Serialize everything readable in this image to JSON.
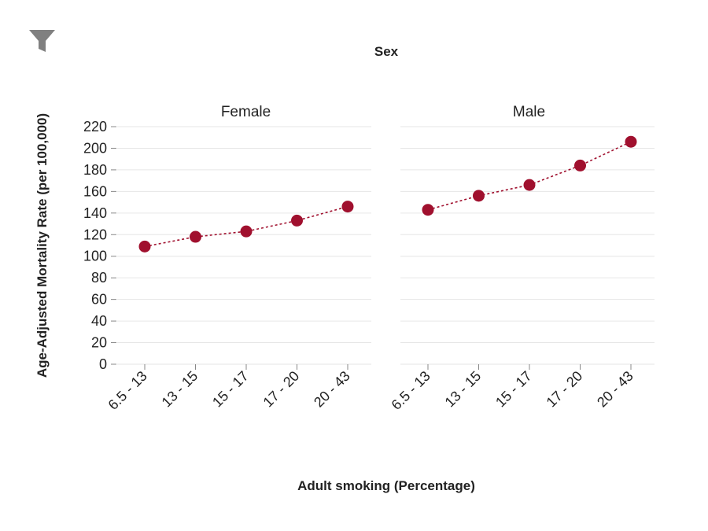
{
  "filter": {
    "icon": "filter-icon",
    "color": "#808080"
  },
  "colors": {
    "series": "#A0102E",
    "grid": "#e6e6e6",
    "text": "#222222"
  },
  "chart_data": {
    "type": "line",
    "facet_header": "Sex",
    "ylabel": "Age-Adjusted Mortality Rate (per 100,000)",
    "xlabel": "Adult smoking (Percentage)",
    "ylim": [
      0,
      220
    ],
    "yticks": [
      0,
      20,
      40,
      60,
      80,
      100,
      120,
      140,
      160,
      180,
      200,
      220
    ],
    "categories": [
      "6.5 - 13",
      "13 - 15",
      "15 - 17",
      "17 - 20",
      "20 - 43"
    ],
    "grid": true,
    "line_style": "dotted",
    "marker": "circle",
    "panels": [
      {
        "name": "Female",
        "values": [
          109,
          118,
          123,
          133,
          146
        ]
      },
      {
        "name": "Male",
        "values": [
          143,
          156,
          166,
          184,
          206
        ]
      }
    ]
  }
}
